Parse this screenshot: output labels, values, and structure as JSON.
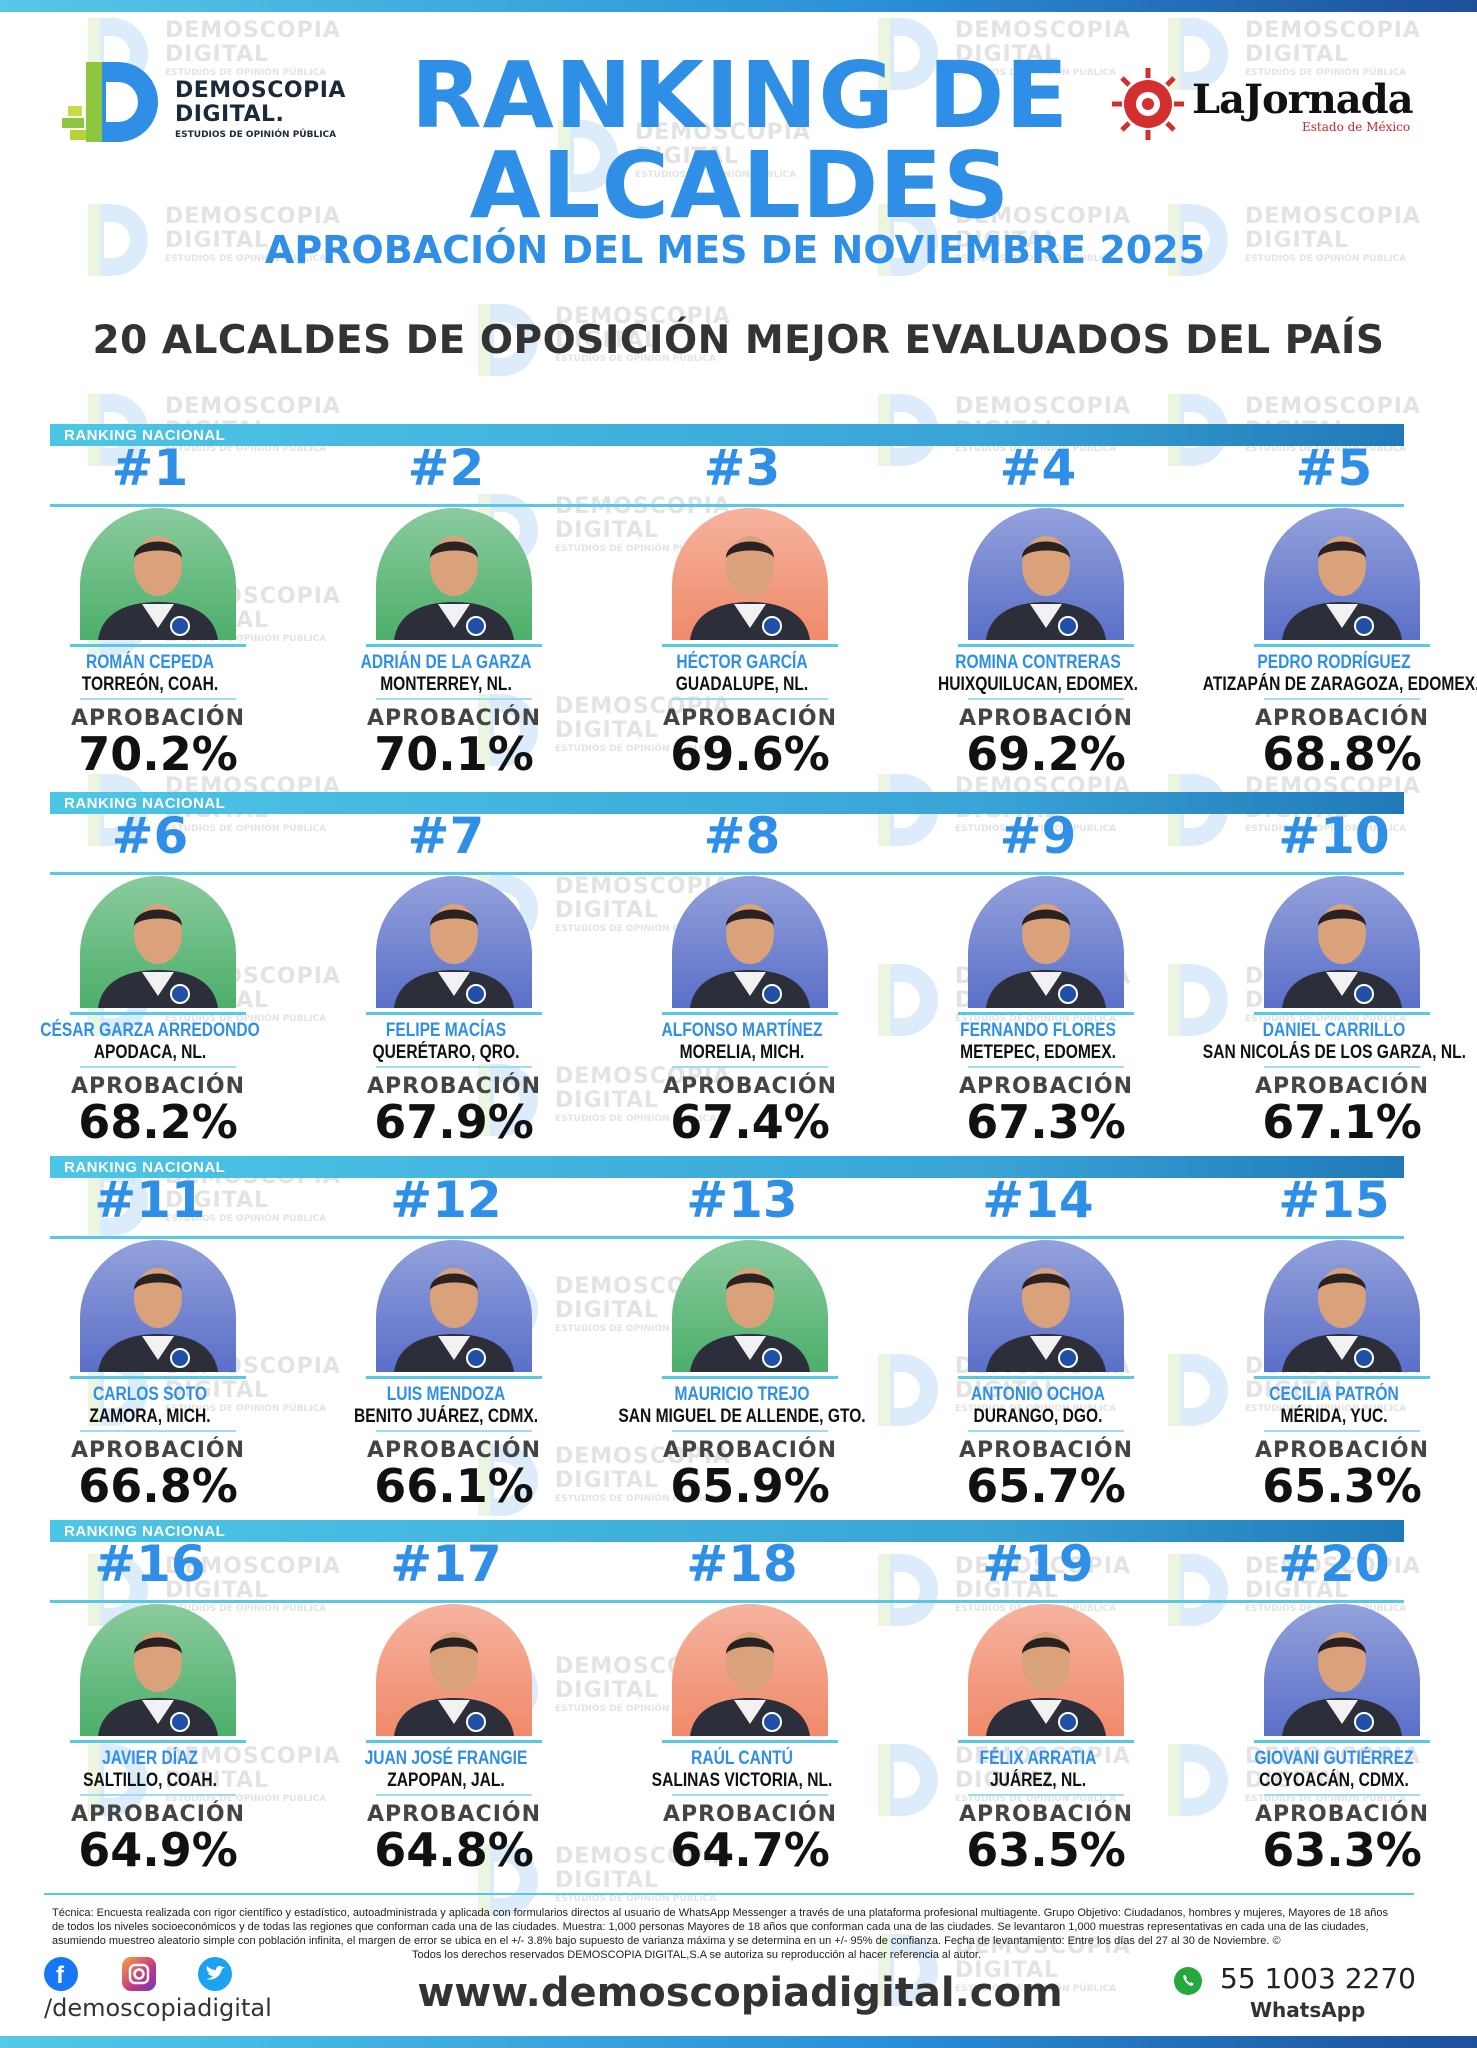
{
  "brand": {
    "line1": "DEMOSCOPIA",
    "line2": "DIGITAL.",
    "tagline": "ESTUDIOS DE OPINIÓN PÚBLICA"
  },
  "watermark": {
    "line1": "DEMOSCOPIA",
    "line2": "DIGITAL",
    "tagline": "ESTUDIOS DE OPINIÓN PÚBLICA"
  },
  "partner": {
    "name": "LaJornada",
    "subtitle": "Estado de México"
  },
  "header": {
    "title_line1": "RANKING DE",
    "title_line2": "ALCALDES",
    "subtitle": "APROBACIÓN DEL MES DE NOVIEMBRE 2025",
    "headline": "20 ALCALDES DE OPOSICIÓN MEJOR EVALUADOS DEL PAÍS"
  },
  "band_label": "RANKING NACIONAL",
  "approval_label": "APROBACIÓN",
  "mayors": [
    {
      "rank": "#1",
      "name": "ROMÁN CEPEDA",
      "city": "TORREÓN, COAH.",
      "approval": "70.2%",
      "bg": "#4caf6a"
    },
    {
      "rank": "#2",
      "name": "ADRIÁN DE LA GARZA",
      "city": "MONTERREY, NL.",
      "approval": "70.1%",
      "bg": "#4caf6a"
    },
    {
      "rank": "#3",
      "name": "HÉCTOR GARCÍA",
      "city": "GUADALUPE, NL.",
      "approval": "69.6%",
      "bg": "#f08a6a"
    },
    {
      "rank": "#4",
      "name": "ROMINA CONTRERAS",
      "city": "HUIXQUILUCAN, EDOMEX.",
      "approval": "69.2%",
      "bg": "#5a6fc8"
    },
    {
      "rank": "#5",
      "name": "PEDRO RODRÍGUEZ",
      "city": "ATIZAPÁN DE ZARAGOZA, EDOMEX.",
      "approval": "68.8%",
      "bg": "#5a6fc8"
    },
    {
      "rank": "#6",
      "name": "CÉSAR GARZA ARREDONDO",
      "city": "APODACA, NL.",
      "approval": "68.2%",
      "bg": "#4caf6a"
    },
    {
      "rank": "#7",
      "name": "FELIPE MACÍAS",
      "city": "QUERÉTARO, QRO.",
      "approval": "67.9%",
      "bg": "#5a6fc8"
    },
    {
      "rank": "#8",
      "name": "ALFONSO MARTÍNEZ",
      "city": "MORELIA, MICH.",
      "approval": "67.4%",
      "bg": "#5a6fc8"
    },
    {
      "rank": "#9",
      "name": "FERNANDO FLORES",
      "city": "METEPEC, EDOMEX.",
      "approval": "67.3%",
      "bg": "#5a6fc8"
    },
    {
      "rank": "#10",
      "name": "DANIEL CARRILLO",
      "city": "SAN NICOLÁS DE LOS GARZA, NL.",
      "approval": "67.1%",
      "bg": "#5a6fc8"
    },
    {
      "rank": "#11",
      "name": "CARLOS SOTO",
      "city": "ZAMORA, MICH.",
      "approval": "66.8%",
      "bg": "#5a6fc8"
    },
    {
      "rank": "#12",
      "name": "LUIS MENDOZA",
      "city": "BENITO JUÁREZ, CDMX.",
      "approval": "66.1%",
      "bg": "#5a6fc8"
    },
    {
      "rank": "#13",
      "name": "MAURICIO TREJO",
      "city": "SAN MIGUEL DE ALLENDE, GTO.",
      "approval": "65.9%",
      "bg": "#4caf6a"
    },
    {
      "rank": "#14",
      "name": "ANTONIO OCHOA",
      "city": "DURANGO, DGO.",
      "approval": "65.7%",
      "bg": "#5a6fc8"
    },
    {
      "rank": "#15",
      "name": "CECILIA PATRÓN",
      "city": "MÉRIDA, YUC.",
      "approval": "65.3%",
      "bg": "#5a6fc8"
    },
    {
      "rank": "#16",
      "name": "JAVIER DÍAZ",
      "city": "SALTILLO, COAH.",
      "approval": "64.9%",
      "bg": "#4caf6a"
    },
    {
      "rank": "#17",
      "name": "JUAN JOSÉ FRANGIE",
      "city": "ZAPOPAN, JAL.",
      "approval": "64.8%",
      "bg": "#f08a6a"
    },
    {
      "rank": "#18",
      "name": "RAÚL CANTÚ",
      "city": "SALINAS VICTORIA, NL.",
      "approval": "64.7%",
      "bg": "#f08a6a"
    },
    {
      "rank": "#19",
      "name": "FÉLIX ARRATIA",
      "city": "JUÁREZ, NL.",
      "approval": "63.5%",
      "bg": "#f08a6a"
    },
    {
      "rank": "#20",
      "name": "GIOVANI GUTIÉRREZ",
      "city": "COYOACÁN, CDMX.",
      "approval": "63.3%",
      "bg": "#5a6fc8"
    }
  ],
  "footer": {
    "note_1": "Técnica: Encuesta realizada con rigor científico y estadístico, autoadministrada y aplicada con formularios directos al usuario de WhatsApp Messenger a través de una plataforma profesional multiagente. Grupo Objetivo: Ciudadanos, hombres y mujeres, Mayores de 18 años de todos los niveles socioeconómicos y de todas las regiones que conforman cada una de las ciudades. Muestra: 1,000 personas Mayores de 18 años que conforman cada una de las ciudades. Se levantaron 1,000 muestras representativas en cada una de las ciudades, asumiendo muestreo aleatorio simple con población infinita, el margen de error se ubica en el +/- 3.8% bajo supuesto de varianza máxima y se determina en un +/- 95% de confianza. Fecha de levantamiento: Entre los días del 27 al 30 de Noviembre. ©",
    "note_2": "Todos los derechos reservados DEMOSCOPIA DIGITAL,S.A se autoriza su reproducción al hacer referencia al autor.",
    "handle": "/demoscopiadigital",
    "website": "www.demoscopiadigital.com",
    "phone": "55 1003 2270",
    "whatsapp": "WhatsApp"
  },
  "colors": {
    "accent": "#2f8fe6",
    "band": "#4cc6e6",
    "facebook": "#1877f2",
    "instagram": "#c13584",
    "twitter": "#1da1f2",
    "whatsapp": "#25a83d"
  }
}
